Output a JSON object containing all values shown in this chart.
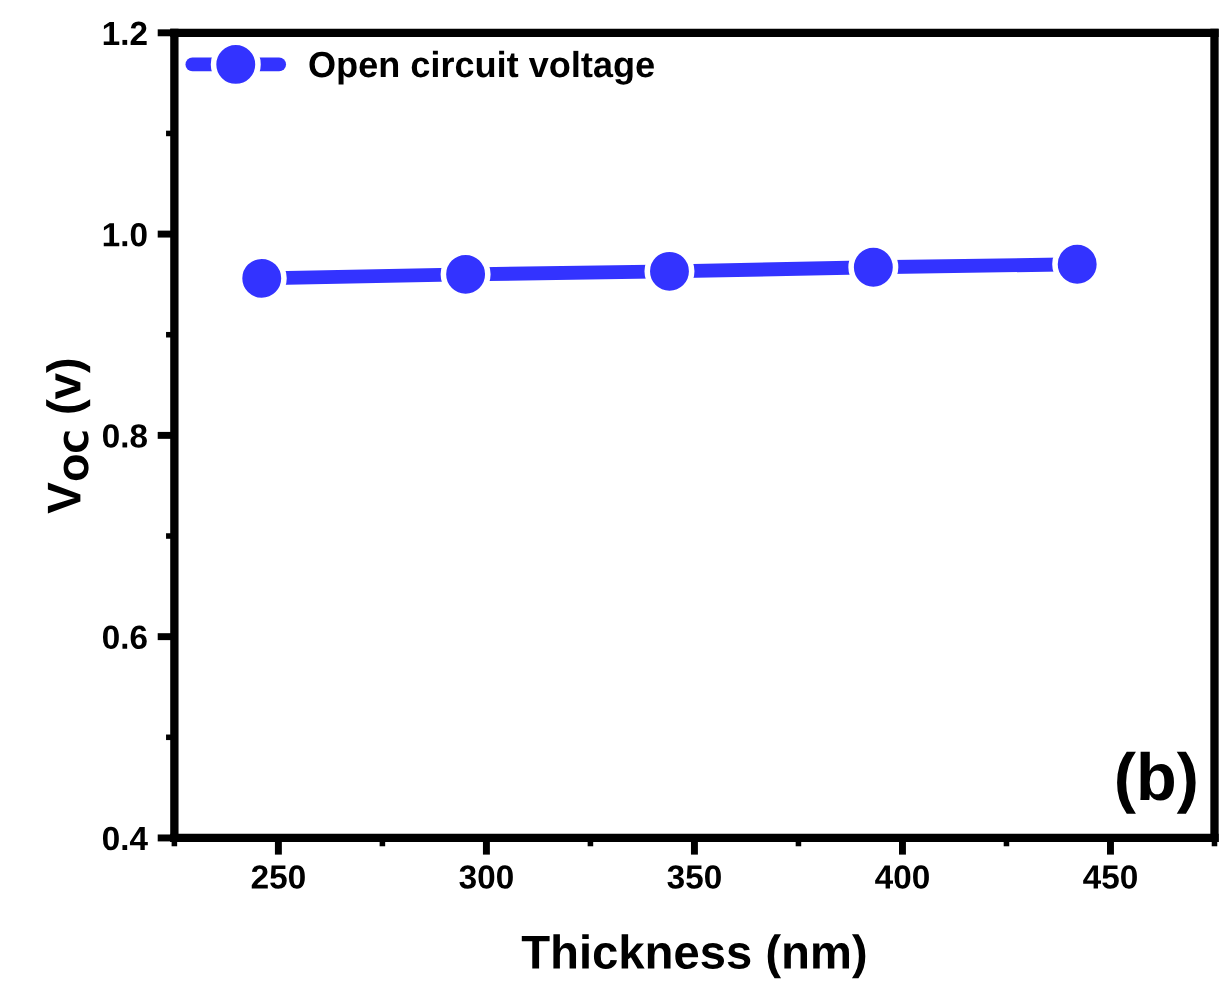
{
  "chart_data": {
    "type": "line",
    "xlabel": "Thickness (nm)",
    "ylabel": "V$_{OC}$ (v)",
    "x": [
      246,
      295,
      344,
      393,
      442
    ],
    "series": [
      {
        "name": "Open circuit voltage",
        "color": "#3333ff",
        "values": [
          0.956,
          0.96,
          0.963,
          0.967,
          0.97
        ]
      }
    ],
    "xlim": [
      225,
      475
    ],
    "xticks": [
      250,
      300,
      350,
      400,
      450
    ],
    "ylim": [
      0.4,
      1.2
    ],
    "yticks": [
      0.4,
      0.6,
      0.8,
      {
        "value": 1.0,
        "label": "1.0"
      },
      1.2
    ],
    "grid": false,
    "legend": "top left",
    "marker": "circle",
    "line_style": "solid",
    "annotations": [
      {
        "text": "(b)"
      }
    ]
  }
}
